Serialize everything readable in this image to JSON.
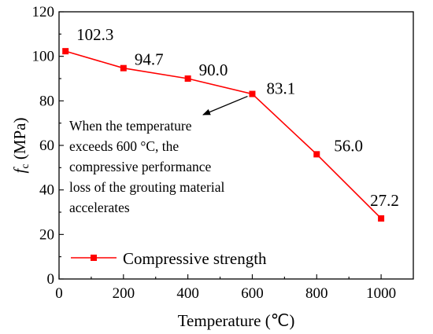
{
  "chart_data": {
    "type": "line",
    "x": [
      20,
      200,
      400,
      600,
      800,
      1000
    ],
    "series": [
      {
        "name": "Compressive strength",
        "values": [
          102.3,
          94.7,
          90.0,
          83.1,
          56.0,
          27.2
        ],
        "data_labels": [
          "102.3",
          "94.7",
          "90.0",
          "83.1",
          "56.0",
          "27.2"
        ],
        "color": "#ff0000",
        "marker": "square"
      }
    ],
    "xlabel": "Temperature (℃)",
    "ylabel_symbol": "f",
    "ylabel_subscript": "c",
    "ylabel_unit": " (MPa)",
    "xlim": [
      0,
      1100
    ],
    "ylim": [
      0,
      120
    ],
    "xticks": [
      "0",
      "200",
      "400",
      "600",
      "800",
      "1000"
    ],
    "yticks": [
      "0",
      "20",
      "40",
      "60",
      "80",
      "100",
      "120"
    ],
    "grid": false,
    "legend_position": "bottom-left",
    "annotation": {
      "lines": [
        "When the temperature",
        "exceeds 600 °C, the",
        "compressive performance",
        "loss of the grouting material",
        "accelerates"
      ],
      "points_to": "83.1"
    }
  }
}
